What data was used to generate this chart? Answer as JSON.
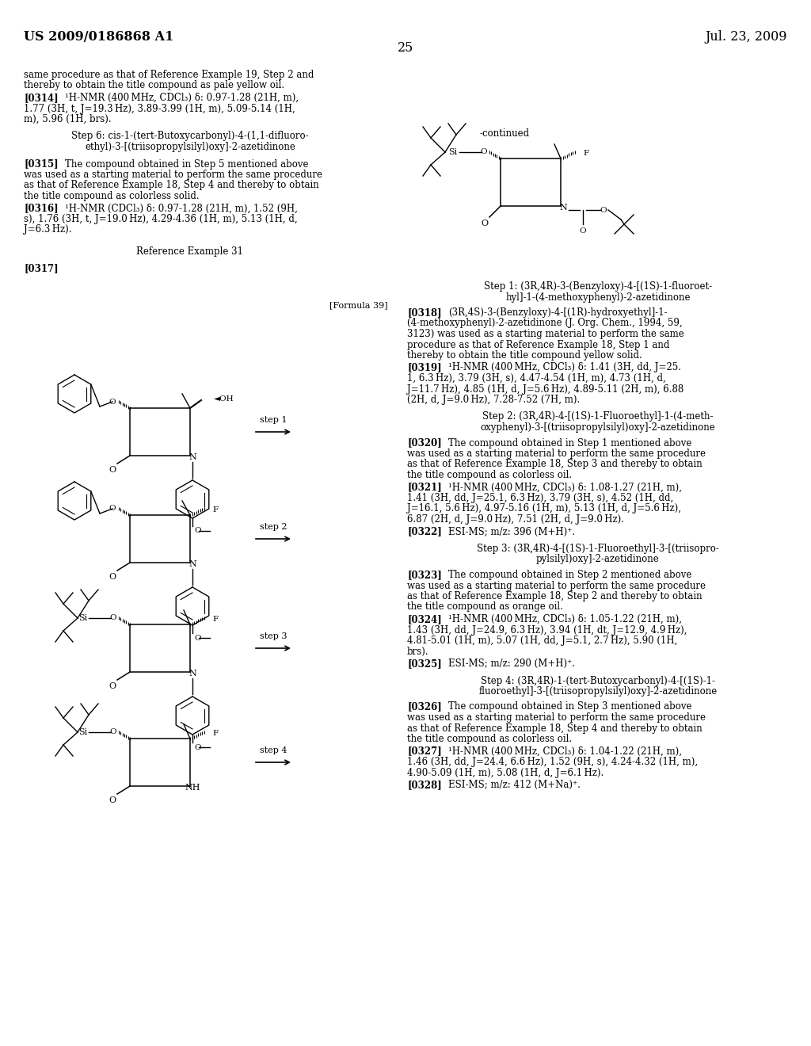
{
  "bg": "#ffffff",
  "header_left": "US 2009/0186868 A1",
  "header_right": "Jul. 23, 2009",
  "page_num": "25"
}
